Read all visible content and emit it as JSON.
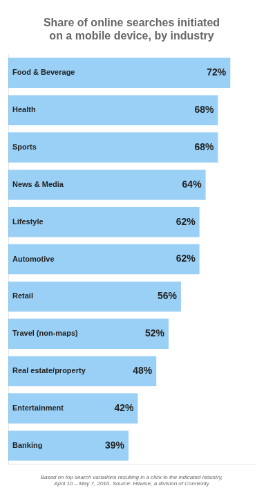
{
  "chart_data": {
    "type": "bar",
    "orientation": "horizontal",
    "title": "Share of online searches initiated\non a mobile device, by industry",
    "footnote": "Based on top search variations resulting in a click to the indicated industry,\nApril 10 – May 7, 2016. Source: Hitwise, a division of Connexity",
    "categories": [
      "Food & Beverage",
      "Health",
      "Sports",
      "News & Media",
      "Lifestyle",
      "Automotive",
      "Retail",
      "Travel (non-maps)",
      "Real estate/property",
      "Entertainment",
      "Banking"
    ],
    "values": [
      72,
      68,
      68,
      64,
      62,
      62,
      56,
      52,
      48,
      42,
      39
    ],
    "value_labels": [
      "72%",
      "68%",
      "68%",
      "64%",
      "62%",
      "62%",
      "56%",
      "52%",
      "48%",
      "42%",
      "39%"
    ],
    "data_labels": true,
    "xlim": [
      0,
      80
    ],
    "grid": false,
    "tick_labels": false
  }
}
